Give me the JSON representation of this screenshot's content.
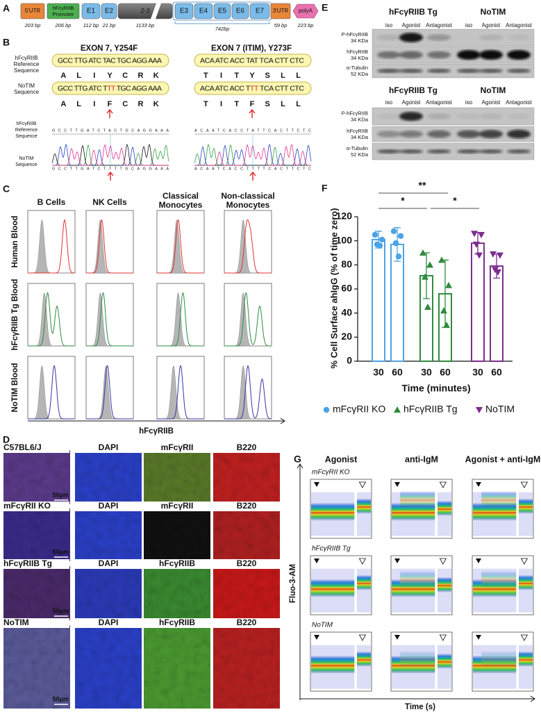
{
  "panel_a": {
    "label": "A",
    "utr5": "5'UTR",
    "promoter": [
      "hFcγRIIB",
      "Promoter"
    ],
    "exons": [
      "E1",
      "E2",
      "2-3",
      "E3",
      "E4",
      "E5",
      "E6",
      "E7"
    ],
    "utr3": "3'UTR",
    "polya": "polyA",
    "sizes": [
      "203 bp",
      "206 bp",
      "112 bp",
      "21 bp",
      "1133 bp",
      "742bp",
      "59 bp",
      "223 bp"
    ]
  },
  "panel_b": {
    "label": "B",
    "ref_label": [
      "hFcγRIIB",
      "Reference",
      "Sequence"
    ],
    "mut_label": [
      "NoTIM",
      "Sequence"
    ],
    "trace_ref_label": [
      "hFcγRIIB",
      "Reference",
      "Sequence"
    ],
    "trace_mut_label": [
      "NoTIM",
      "Sequence"
    ],
    "exons": [
      {
        "title": "EXON 7, Y254F",
        "ref_codons": "GCC TTG ATC TAC TGC AGG AAA",
        "ref_aa": [
          "A",
          "L",
          "I",
          "Y",
          "C",
          "R",
          "K"
        ],
        "mut_codons": [
          "GCC TTG ATC T",
          "TT",
          " TGC AGG AAA"
        ],
        "mut_aa": [
          "A",
          "L",
          "I",
          "F",
          "C",
          "R",
          "K"
        ],
        "ref_trace": "GCCTTGATCTACTGCAGGAAA",
        "mut_trace": "GCCTTGATCTTTTGCAGGAAA"
      },
      {
        "title": "EXON 7 (ITIM), Y273F",
        "ref_codons": "ACA ATC ACC TAT TCA CTT CTC",
        "ref_aa": [
          "T",
          "I",
          "T",
          "Y",
          "S",
          "L",
          "L"
        ],
        "mut_codons": [
          "ACA ATC ACC T",
          "TT",
          " TCA CTT CTC"
        ],
        "mut_aa": [
          "T",
          "I",
          "T",
          "F",
          "S",
          "L",
          "L"
        ],
        "ref_trace": "ACAATCACCTATTCACTTCTC",
        "mut_trace": "ACAATCACCTTTTCACTTCTC"
      }
    ]
  },
  "panel_c": {
    "label": "C",
    "columns": [
      [
        "B Cells"
      ],
      [
        "NK Cells"
      ],
      [
        "Classical",
        "Monocytes"
      ],
      [
        "Non-classical",
        "Monocytes"
      ]
    ],
    "rows": [
      "Human Blood",
      "hFcγRIIB Tg Blood",
      "NoTIM Blood"
    ],
    "x_label": "hFcγRIIB"
  },
  "panel_d": {
    "label": "D",
    "scale": "50μm",
    "rows": [
      {
        "name": "C57BL6/J",
        "channels": [
          "DAPI",
          "mFcγRII",
          "B220"
        ]
      },
      {
        "name": "mFcγRII KO",
        "channels": [
          "DAPI",
          "mFcγRII",
          "B220"
        ]
      },
      {
        "name": "hFcγRIIB Tg",
        "channels": [
          "DAPI",
          "hFcγRIIB",
          "B220"
        ]
      },
      {
        "name": "NoTIM",
        "channels": [
          "DAPI",
          "hFcγRIIB",
          "B220"
        ]
      }
    ]
  },
  "panel_e": {
    "label": "E",
    "blots": [
      {
        "groups": [
          "hFcγRIIB Tg",
          "NoTIM"
        ],
        "lanes": [
          "iso",
          "Agonist",
          "Antagonist",
          "iso",
          "Agonist",
          "Antagonist"
        ],
        "rows": [
          [
            "P-hFcγRIIB",
            "34 KDa"
          ],
          [
            "hFcγRIIB",
            "34 KDa"
          ],
          [
            "α-Tubulin",
            "52 KDa"
          ]
        ]
      },
      {
        "groups": [
          "hFcγRIIB Tg",
          "NoTIM"
        ],
        "lanes": [
          "iso",
          "Agonist",
          "Antagonist",
          "iso",
          "Agonist",
          "Antagonist"
        ],
        "rows": [
          [
            "P-hFcγRIIB",
            "34 KDa"
          ],
          [
            "hFcγRIIB",
            "34 KDa"
          ],
          [
            "α-Tubulin",
            "52 KDa"
          ]
        ]
      }
    ]
  },
  "chart_data": {
    "type": "bar",
    "label": "F",
    "y_label": "% Cell Surface ahIgG (% of time zero)",
    "x_label": "Time (minutes)",
    "ylim": [
      0,
      120
    ],
    "yticks": [
      0,
      20,
      40,
      60,
      80,
      100,
      120
    ],
    "series": [
      {
        "name": "mFcγRII KO",
        "color": "#4aa3e6",
        "marker": "circle",
        "categories": [
          "30",
          "60"
        ],
        "values": [
          101,
          97
        ],
        "errors": [
          7,
          14
        ],
        "points": [
          [
            105,
            101,
            97,
            96
          ],
          [
            108,
            104,
            98,
            87
          ]
        ]
      },
      {
        "name": "hFcγRIIB Tg",
        "color": "#2e8b3e",
        "marker": "triangle-up",
        "categories": [
          "30",
          "60"
        ],
        "values": [
          71,
          56
        ],
        "errors": [
          19,
          28
        ],
        "points": [
          [
            90,
            80,
            70,
            45
          ],
          [
            84,
            63,
            42,
            30
          ]
        ]
      },
      {
        "name": "NoTIM",
        "color": "#7b2d8e",
        "marker": "triangle-down",
        "categories": [
          "30",
          "60"
        ],
        "values": [
          98,
          79
        ],
        "errors": [
          9,
          10
        ],
        "points": [
          [
            106,
            105,
            97,
            88
          ],
          [
            89,
            88,
            76,
            74
          ]
        ]
      }
    ],
    "annotations": [
      "**",
      "*",
      "*"
    ]
  },
  "panel_g": {
    "label": "G",
    "columns": [
      "Agonist",
      "anti-IgM",
      "Agonist + anti-IgM"
    ],
    "rows": [
      "mFcγRII KO",
      "hFcγRIIB Tg",
      "NoTIM"
    ],
    "y_label": "Fluo-3-AM",
    "x_label": "Time (s)"
  }
}
